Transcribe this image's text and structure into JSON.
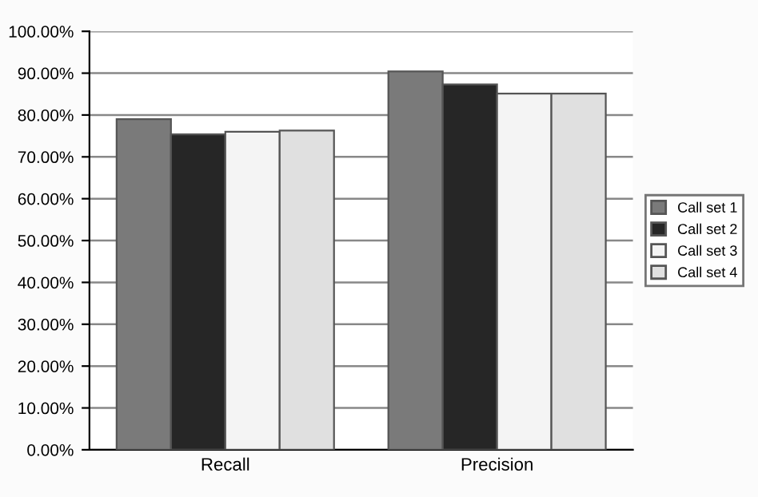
{
  "chart_data": {
    "type": "bar",
    "categories": [
      "Recall",
      "Precision"
    ],
    "series": [
      {
        "name": "Call set 1",
        "color": "#7a7a7a",
        "values": [
          79.0,
          90.4
        ]
      },
      {
        "name": "Call set 2",
        "color": "#262626",
        "values": [
          75.4,
          87.3
        ]
      },
      {
        "name": "Call set 3",
        "color": "#f4f4f4",
        "values": [
          76.0,
          85.1
        ]
      },
      {
        "name": "Call set 4",
        "color": "#e0e0e0",
        "values": [
          76.3,
          85.1
        ]
      }
    ],
    "ylim": [
      0,
      100
    ],
    "yticks": [
      {
        "value": 0,
        "label": "0.00%"
      },
      {
        "value": 10,
        "label": "10.00%"
      },
      {
        "value": 20,
        "label": "20.00%"
      },
      {
        "value": 30,
        "label": "30.00%"
      },
      {
        "value": 40,
        "label": "40.00%"
      },
      {
        "value": 50,
        "label": "50.00%"
      },
      {
        "value": 60,
        "label": "60.00%"
      },
      {
        "value": 70,
        "label": "70.00%"
      },
      {
        "value": 80,
        "label": "80.00%"
      },
      {
        "value": 90,
        "label": "90.00%"
      },
      {
        "value": 100,
        "label": "100.00%"
      }
    ],
    "grid": "y",
    "legend": "right"
  }
}
